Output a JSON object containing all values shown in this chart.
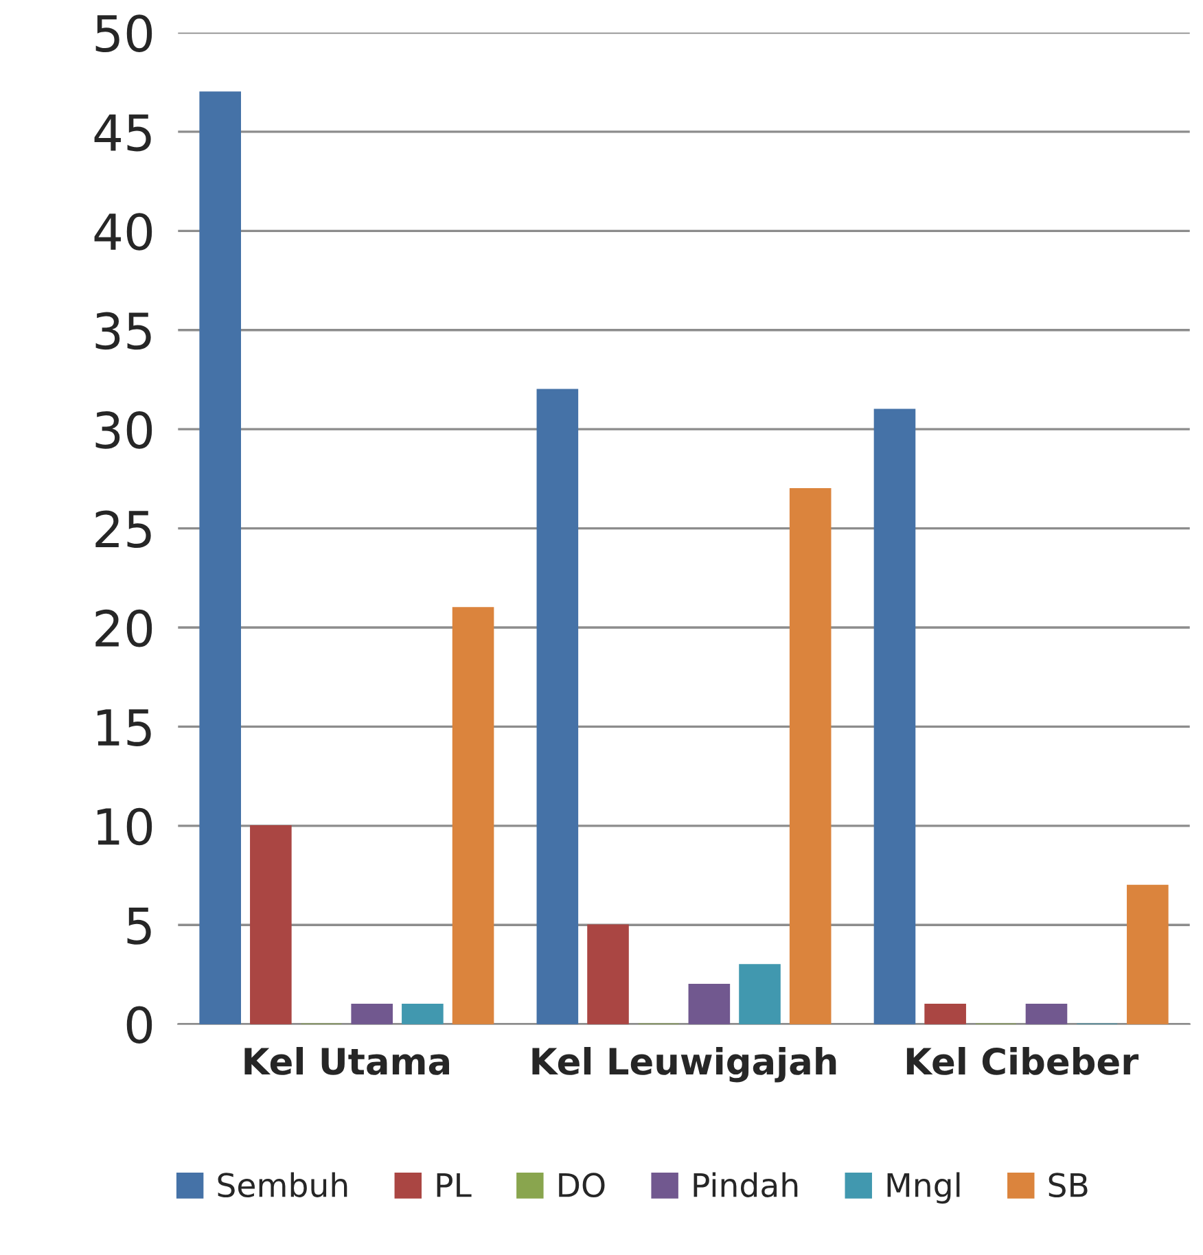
{
  "chart_data": {
    "type": "bar",
    "categories": [
      "Kel Utama",
      "Kel Leuwigajah",
      "Kel Cibeber"
    ],
    "series": [
      {
        "name": "Sembuh",
        "color": "#4572a7",
        "values": [
          47,
          32,
          31
        ]
      },
      {
        "name": "PL",
        "color": "#aa4643",
        "values": [
          10,
          5,
          1
        ]
      },
      {
        "name": "DO",
        "color": "#89a54e",
        "values": [
          0,
          0,
          0
        ]
      },
      {
        "name": "Pindah",
        "color": "#71588f",
        "values": [
          1,
          2,
          1
        ]
      },
      {
        "name": "Mngl",
        "color": "#4198af",
        "values": [
          1,
          3,
          0
        ]
      },
      {
        "name": "SB",
        "color": "#db843d",
        "values": [
          21,
          27,
          7
        ]
      }
    ],
    "ylim": [
      0,
      50
    ],
    "yticks": [
      0,
      5,
      10,
      15,
      20,
      25,
      30,
      35,
      40,
      45,
      50
    ],
    "grid": "y",
    "legend": "bottom"
  }
}
